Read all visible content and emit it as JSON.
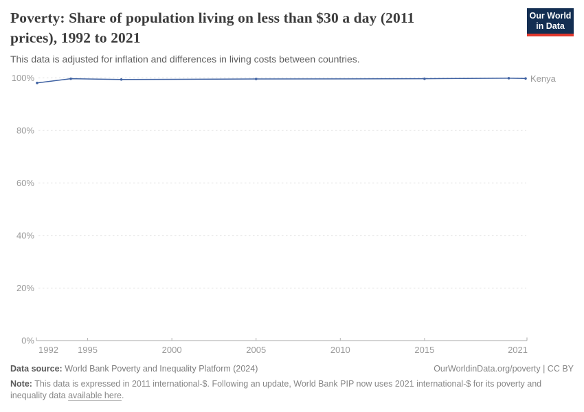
{
  "header": {
    "title": "Poverty: Share of population living on less than $30 a day (2011 prices), 1992 to 2021",
    "subtitle": "This data is adjusted for inflation and differences in living costs between countries.",
    "logo": {
      "line1": "Our World",
      "line2": "in Data"
    }
  },
  "colors": {
    "series_line": "#3e61a2",
    "entity_label": "#4a6fa9",
    "logo_bg": "#132e52",
    "logo_bar": "#e0372c",
    "grid": "#dcdcdc",
    "axis": "#a8a8a8",
    "tick_text": "#9a9a9a"
  },
  "chart_data": {
    "type": "line",
    "title": "Poverty: Share of population living on less than $30 a day (2011 prices), 1992 to 2021",
    "subtitle": "This data is adjusted for inflation and differences in living costs between countries.",
    "x": [
      1992,
      1994,
      1997,
      2005,
      2015,
      2020,
      2021
    ],
    "series": [
      {
        "name": "Kenya",
        "values": [
          98.1,
          99.7,
          99.4,
          99.6,
          99.7,
          99.9,
          99.8
        ],
        "color": "#3e61a2"
      }
    ],
    "xlim": [
      1992,
      2021
    ],
    "ylim": [
      0,
      100
    ],
    "x_ticks": [
      1992,
      1995,
      2000,
      2005,
      2010,
      2015,
      2021
    ],
    "x_tick_labels": [
      "1992",
      "1995",
      "2000",
      "2005",
      "2010",
      "2015",
      "2021"
    ],
    "y_ticks": [
      0,
      20,
      40,
      60,
      80,
      100
    ],
    "y_tick_labels": [
      "0%",
      "20%",
      "40%",
      "60%",
      "80%",
      "100%"
    ],
    "grid": "horizontal-dashed",
    "legend_position": "end-of-line-label"
  },
  "footer": {
    "source_label": "Data source:",
    "source_text": "World Bank Poverty and Inequality Platform (2024)",
    "rights": "OurWorldinData.org/poverty | CC BY",
    "note_label": "Note:",
    "note_before_link": "This data is expressed in 2011 international-$. Following an update, World Bank PIP now uses 2021 international-$ for its poverty and inequality data",
    "note_link": "available here",
    "note_after_link": "."
  }
}
